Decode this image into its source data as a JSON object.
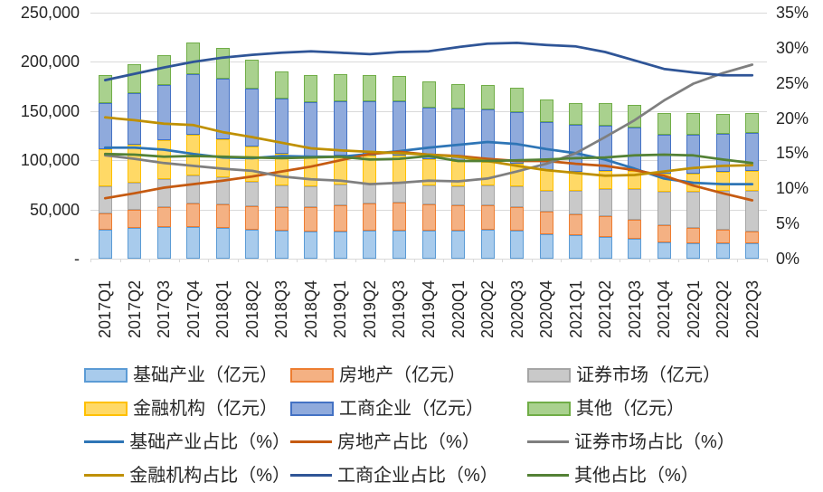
{
  "chart_data": {
    "type": "bar",
    "subtype": "stacked-bars-with-percentage-lines",
    "title": "",
    "xlabel": "",
    "ylabel_left": "",
    "ylabel_right": "",
    "grid": "horizontal",
    "legend_position": "bottom",
    "categories": [
      "2017Q1",
      "2017Q2",
      "2017Q3",
      "2017Q4",
      "2018Q1",
      "2018Q2",
      "2018Q3",
      "2018Q4",
      "2019Q1",
      "2019Q2",
      "2019Q3",
      "2019Q4",
      "2020Q1",
      "2020Q2",
      "2020Q3",
      "2020Q4",
      "2021Q1",
      "2021Q2",
      "2021Q3",
      "2021Q4",
      "2022Q1",
      "2022Q2",
      "2022Q3"
    ],
    "y_left": {
      "min": 0,
      "max": 250000,
      "ticks": [
        "-",
        "50,000",
        "100,000",
        "150,000",
        "200,000",
        "250,000"
      ]
    },
    "y_right": {
      "min": 0,
      "max": 35,
      "ticks": [
        "0%",
        "5%",
        "10%",
        "15%",
        "20%",
        "25%",
        "30%",
        "35%"
      ]
    },
    "series": [
      {
        "name": "基础产业（亿元）",
        "kind": "bar",
        "axis": "left",
        "fill": "#A8CBEC",
        "border": "#5B9BD5",
        "values": [
          29600,
          31100,
          32000,
          32600,
          31100,
          29200,
          28200,
          27500,
          27600,
          28200,
          28500,
          28300,
          28600,
          29100,
          28100,
          25200,
          23700,
          22300,
          20000,
          16900,
          15900,
          15700,
          15700
        ]
      },
      {
        "name": "房地产（亿元）",
        "kind": "bar",
        "axis": "left",
        "fill": "#F4B183",
        "border": "#ED7D31",
        "values": [
          16100,
          18300,
          20900,
          23200,
          24000,
          23900,
          23900,
          24800,
          26600,
          28200,
          28300,
          26500,
          25800,
          24900,
          24000,
          22400,
          21300,
          20900,
          19700,
          17500,
          15300,
          13800,
          12300
        ]
      },
      {
        "name": "证券市场（亿元）",
        "kind": "bar",
        "axis": "left",
        "fill": "#C9C9C9",
        "border": "#A5A5A5",
        "values": [
          27600,
          28000,
          28100,
          28900,
          27600,
          25500,
          22600,
          21400,
          21100,
          20000,
          20100,
          19900,
          19400,
          20000,
          21400,
          21800,
          23700,
          27300,
          30700,
          33400,
          36700,
          39100,
          41000
        ]
      },
      {
        "name": "金融机构（亿元）",
        "kind": "bar",
        "axis": "left",
        "fill": "#FFD966",
        "border": "#FFC000",
        "values": [
          37700,
          38800,
          39600,
          41600,
          38900,
          35300,
          31800,
          29800,
          29300,
          28700,
          27900,
          26500,
          25600,
          24400,
          22800,
          20300,
          19300,
          18600,
          18600,
          18400,
          19000,
          19500,
          19800
        ]
      },
      {
        "name": "工商企业（亿元）",
        "kind": "bar",
        "axis": "left",
        "fill": "#8FAADC",
        "border": "#4472C4",
        "values": [
          47600,
          51800,
          56200,
          61300,
          61800,
          59200,
          56500,
          55900,
          55700,
          55000,
          54700,
          52800,
          53100,
          53700,
          53000,
          49100,
          47700,
          46500,
          44000,
          40100,
          39100,
          38600,
          38800
        ]
      },
      {
        "name": "其他（亿元）",
        "kind": "bar",
        "axis": "left",
        "fill": "#A9D18E",
        "border": "#70AD47",
        "values": [
          27900,
          29200,
          29900,
          32000,
          31300,
          29400,
          27600,
          27300,
          27600,
          26600,
          26400,
          26100,
          24500,
          24400,
          24200,
          22800,
          22600,
          22800,
          22900,
          22000,
          21700,
          20900,
          20200
        ]
      },
      {
        "name": "基础产业占比（%）",
        "kind": "line",
        "axis": "right",
        "color": "#2E75B6",
        "values": [
          15.8,
          15.8,
          15.5,
          14.9,
          14.4,
          14.3,
          14.6,
          14.5,
          14.5,
          14.9,
          15.3,
          15.8,
          16.2,
          16.6,
          16.3,
          15.6,
          15.0,
          14.1,
          12.8,
          11.4,
          10.8,
          10.6,
          10.6
        ]
      },
      {
        "name": "房地产占比（%）",
        "kind": "line",
        "axis": "right",
        "color": "#C55A11",
        "values": [
          8.6,
          9.3,
          10.1,
          10.6,
          11.1,
          11.7,
          12.4,
          13.1,
          14.0,
          14.9,
          15.2,
          14.8,
          14.6,
          14.2,
          13.9,
          13.9,
          13.5,
          13.2,
          12.6,
          11.8,
          10.4,
          9.3,
          8.3
        ]
      },
      {
        "name": "证券市场占比（%）",
        "kind": "line",
        "axis": "right",
        "color": "#7F7F7F",
        "values": [
          14.7,
          14.2,
          13.6,
          13.2,
          12.8,
          12.5,
          11.7,
          11.3,
          11.1,
          10.6,
          10.8,
          11.1,
          11.0,
          11.4,
          12.4,
          13.5,
          15.0,
          17.3,
          19.7,
          22.5,
          24.9,
          26.4,
          27.6
        ]
      },
      {
        "name": "金融机构占比（%）",
        "kind": "line",
        "axis": "right",
        "color": "#BF9000",
        "values": [
          20.1,
          19.7,
          19.2,
          19.0,
          18.0,
          17.3,
          16.5,
          15.7,
          15.4,
          15.2,
          15.0,
          14.8,
          14.5,
          13.9,
          13.2,
          12.6,
          12.2,
          11.8,
          11.9,
          12.4,
          12.9,
          13.2,
          13.3
        ]
      },
      {
        "name": "工商企业占比（%）",
        "kind": "line",
        "axis": "right",
        "color": "#2F5597",
        "values": [
          25.4,
          26.3,
          27.2,
          28.0,
          28.6,
          29.0,
          29.3,
          29.5,
          29.3,
          29.1,
          29.4,
          29.5,
          30.1,
          30.6,
          30.7,
          30.4,
          30.2,
          29.4,
          28.2,
          27.0,
          26.5,
          26.1,
          26.1
        ]
      },
      {
        "name": "其他占比（%）",
        "kind": "line",
        "axis": "right",
        "color": "#538135",
        "values": [
          14.9,
          14.8,
          14.5,
          14.6,
          14.5,
          14.4,
          14.3,
          14.4,
          14.5,
          14.1,
          14.2,
          14.6,
          13.9,
          13.9,
          14.0,
          14.1,
          14.3,
          14.4,
          14.7,
          14.8,
          14.7,
          14.1,
          13.6
        ]
      }
    ],
    "colors": {
      "gridline": "#D9D9D9",
      "axis_text": "#262626",
      "background": "#FFFFFF"
    }
  }
}
